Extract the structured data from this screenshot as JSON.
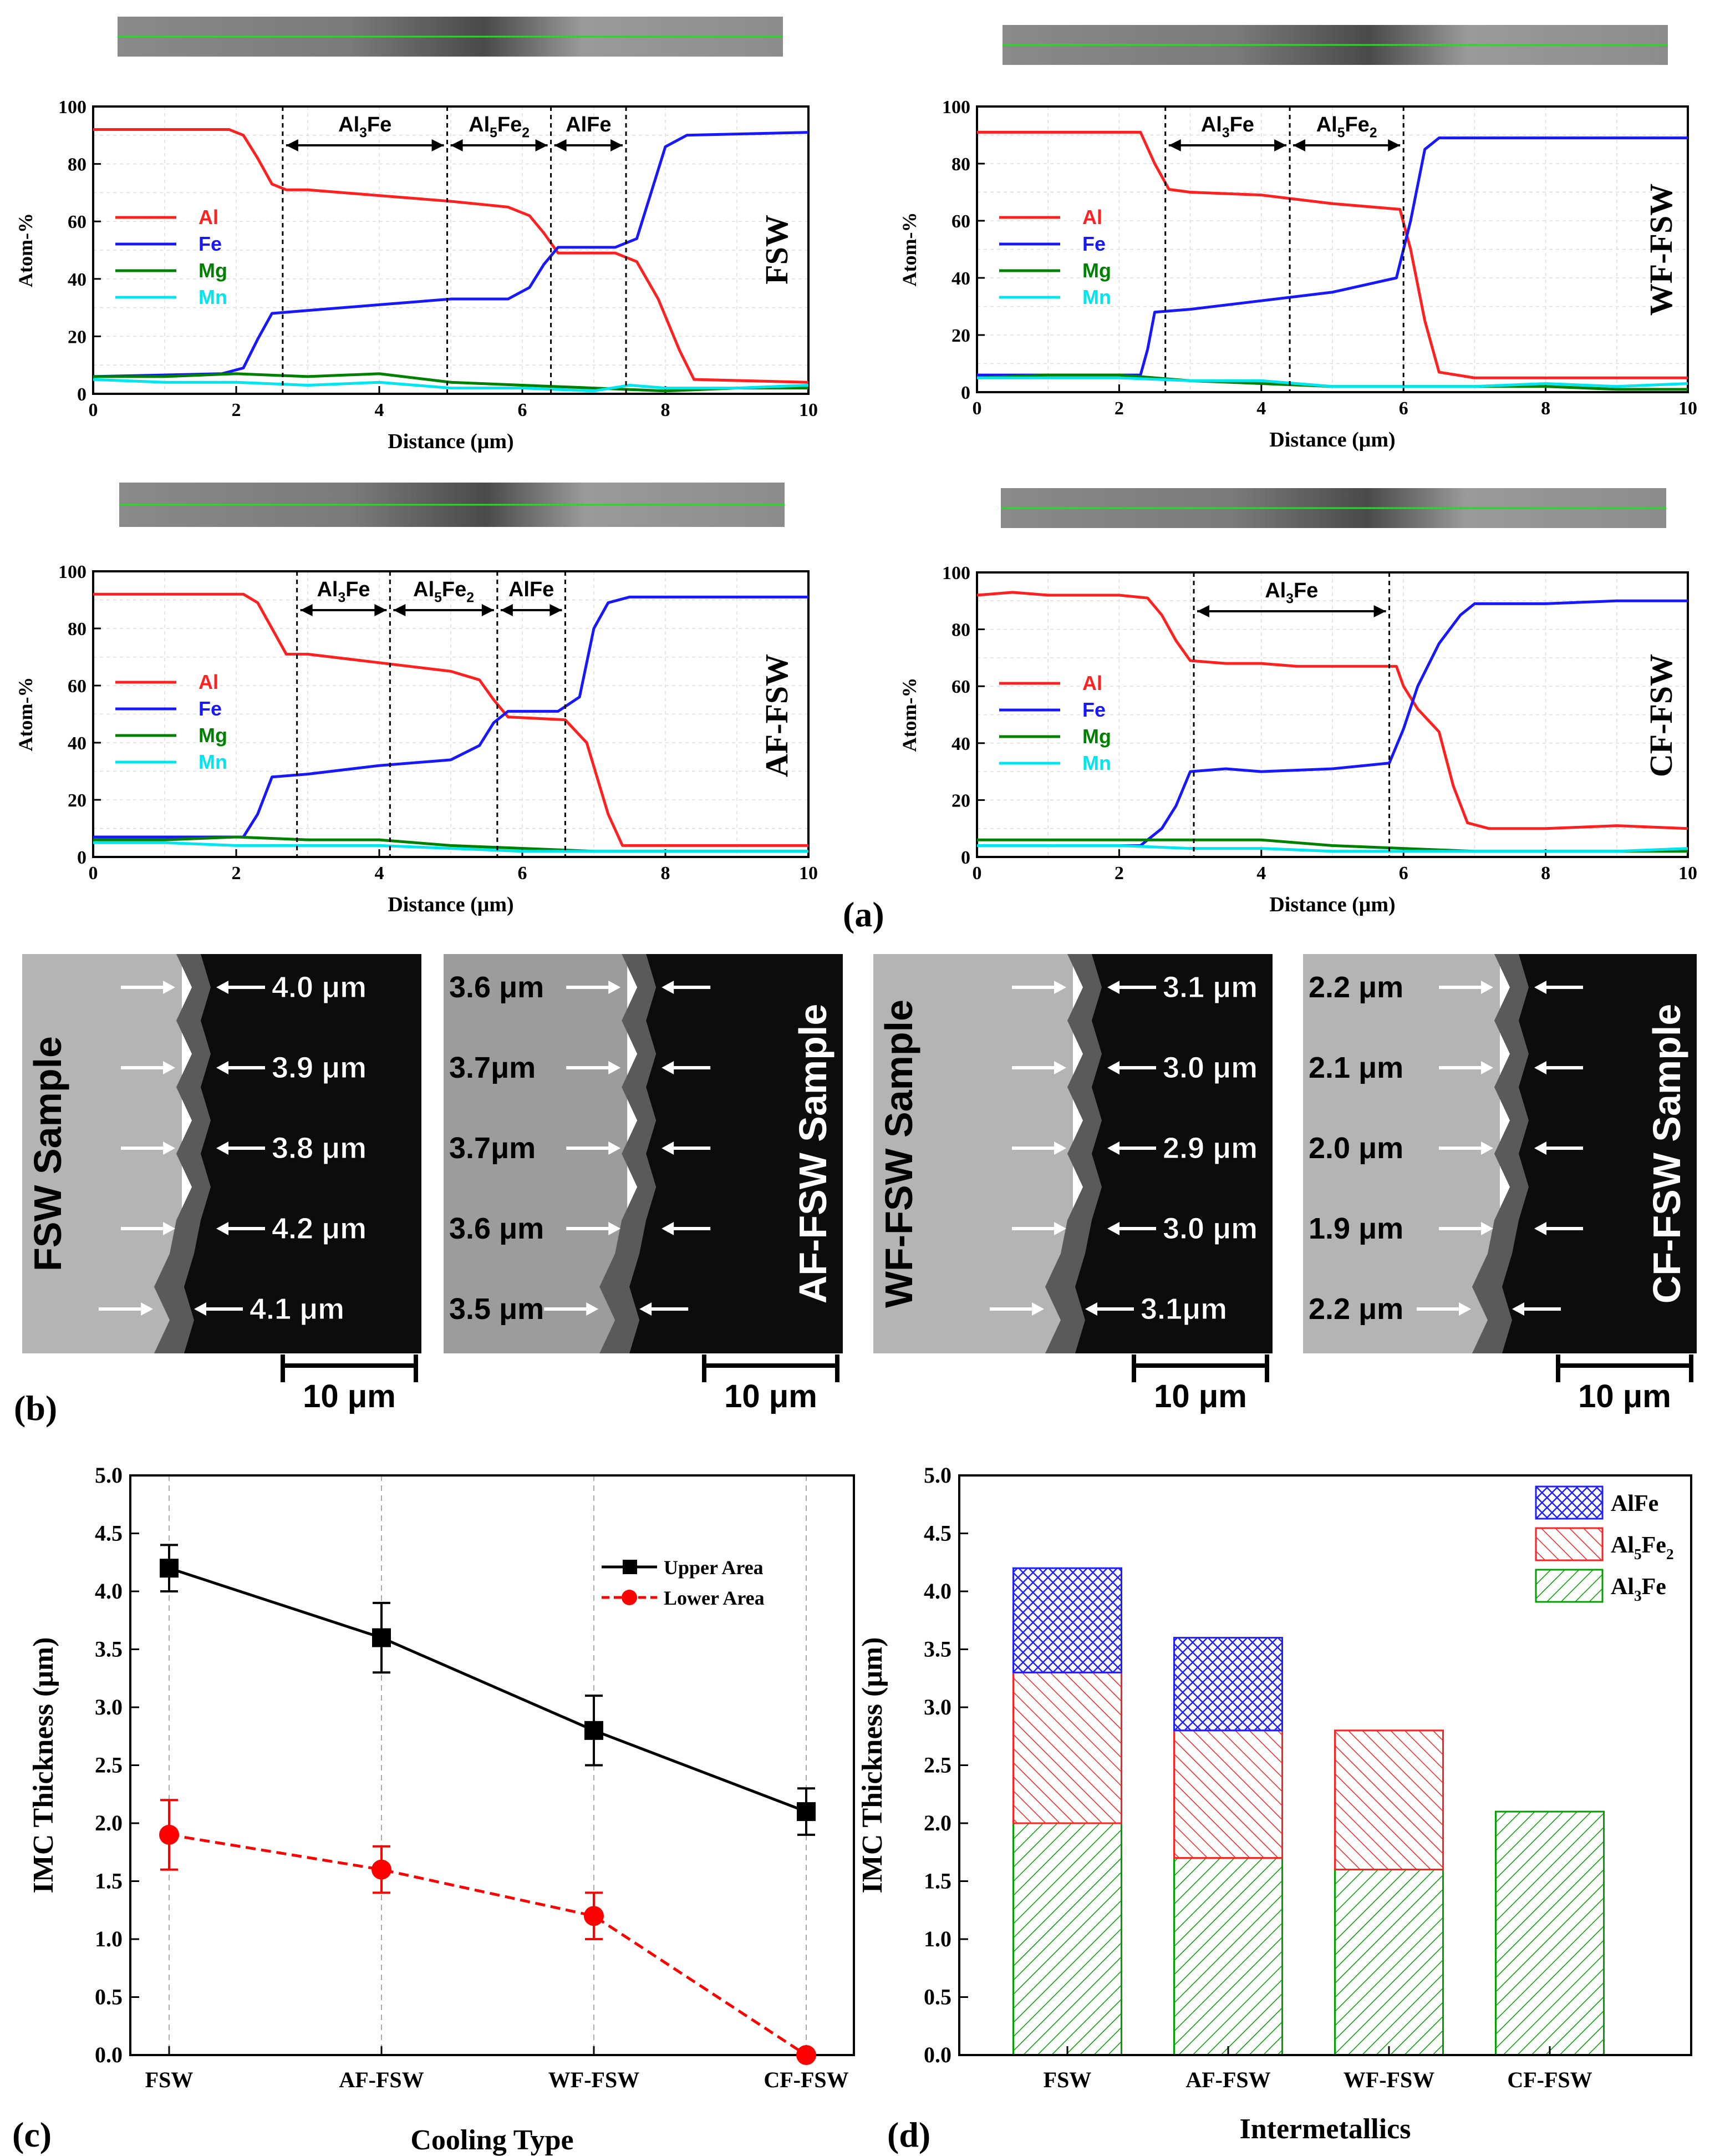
{
  "chart_data": [
    {
      "id": "a1",
      "type": "line",
      "panel_label": "FSW",
      "xlabel": "Distance (μm)",
      "ylabel": "Atom-%",
      "xlim": [
        0,
        10
      ],
      "ylim": [
        0,
        100
      ],
      "xticks": [
        "0",
        "2",
        "4",
        "6",
        "8",
        "10"
      ],
      "yticks": [
        "0",
        "20",
        "40",
        "60",
        "80",
        "100"
      ],
      "legend": [
        "Al",
        "Fe",
        "Mg",
        "Mn"
      ],
      "markers": [
        2.65,
        4.95,
        6.4,
        7.45
      ],
      "phases": [
        {
          "base": "Al",
          "s1": "3",
          "mid": "Fe",
          "s2": "",
          "from": 2.65,
          "to": 4.95
        },
        {
          "base": "Al",
          "s1": "5",
          "mid": "Fe",
          "s2": "2",
          "from": 4.95,
          "to": 6.4
        },
        {
          "base": "AlFe",
          "s1": "",
          "mid": "",
          "s2": "",
          "from": 6.4,
          "to": 7.45
        }
      ],
      "series": [
        {
          "name": "Al",
          "color": "#ff2020",
          "x": [
            0,
            1.9,
            2.1,
            2.3,
            2.5,
            2.7,
            3,
            4,
            5,
            5.8,
            6.1,
            6.3,
            6.5,
            7.3,
            7.6,
            7.9,
            8.2,
            8.4,
            10
          ],
          "y": [
            92,
            92,
            90,
            82,
            73,
            71,
            71,
            69,
            67,
            65,
            62,
            56,
            49,
            49,
            46,
            33,
            15,
            5,
            4
          ]
        },
        {
          "name": "Fe",
          "color": "#1818ff",
          "x": [
            0,
            1.8,
            2.1,
            2.3,
            2.5,
            3,
            4,
            5,
            5.8,
            6.1,
            6.3,
            6.5,
            7.3,
            7.6,
            7.8,
            8.0,
            8.3,
            10
          ],
          "y": [
            6,
            7,
            9,
            19,
            28,
            29,
            31,
            33,
            33,
            37,
            45,
            51,
            51,
            54,
            70,
            86,
            90,
            91
          ]
        },
        {
          "name": "Mg",
          "color": "#008000",
          "x": [
            0,
            1,
            2,
            3,
            4,
            5,
            6,
            7,
            8,
            9,
            10
          ],
          "y": [
            6,
            6,
            7,
            6,
            7,
            4,
            3,
            2,
            1,
            2,
            2
          ]
        },
        {
          "name": "Mn",
          "color": "#00e5ee",
          "x": [
            0,
            1,
            2,
            3,
            4,
            5,
            6,
            7,
            7.5,
            8,
            9,
            10
          ],
          "y": [
            5,
            4,
            4,
            3,
            4,
            2,
            2,
            1,
            3,
            2,
            2,
            3
          ]
        }
      ]
    },
    {
      "id": "a2",
      "type": "line",
      "panel_label": "WF-FSW",
      "xlabel": "Distance (μm)",
      "ylabel": "Atom-%",
      "xlim": [
        0,
        10
      ],
      "ylim": [
        0,
        100
      ],
      "xticks": [
        "0",
        "2",
        "4",
        "6",
        "8",
        "10"
      ],
      "yticks": [
        "0",
        "20",
        "40",
        "60",
        "80",
        "100"
      ],
      "legend": [
        "Al",
        "Fe",
        "Mg",
        "Mn"
      ],
      "markers": [
        2.65,
        4.4,
        6.0
      ],
      "phases": [
        {
          "base": "Al",
          "s1": "3",
          "mid": "Fe",
          "s2": "",
          "from": 2.65,
          "to": 4.4
        },
        {
          "base": "Al",
          "s1": "5",
          "mid": "Fe",
          "s2": "2",
          "from": 4.4,
          "to": 6.0
        }
      ],
      "series": [
        {
          "name": "Al",
          "color": "#ff2020",
          "x": [
            0,
            2.3,
            2.5,
            2.7,
            3,
            4,
            5,
            5.95,
            6.1,
            6.3,
            6.5,
            7,
            8,
            10
          ],
          "y": [
            91,
            91,
            80,
            71,
            70,
            69,
            66,
            64,
            50,
            25,
            7,
            5,
            5,
            5
          ]
        },
        {
          "name": "Fe",
          "color": "#1818ff",
          "x": [
            0,
            2.3,
            2.4,
            2.5,
            3,
            4,
            5,
            5.9,
            6.1,
            6.3,
            6.5,
            8,
            10
          ],
          "y": [
            6,
            6,
            15,
            28,
            29,
            32,
            35,
            40,
            60,
            85,
            89,
            89,
            89
          ]
        },
        {
          "name": "Mg",
          "color": "#008000",
          "x": [
            0,
            1,
            2,
            3,
            4,
            5,
            6,
            7,
            8,
            9,
            10
          ],
          "y": [
            5,
            6,
            6,
            4,
            3,
            2,
            2,
            2,
            2,
            1,
            1
          ]
        },
        {
          "name": "Mn",
          "color": "#00e5ee",
          "x": [
            0,
            1,
            2,
            3,
            4,
            5,
            6,
            7,
            8,
            9,
            10
          ],
          "y": [
            5,
            5,
            5,
            4,
            4,
            2,
            2,
            2,
            3,
            2,
            3
          ]
        }
      ]
    },
    {
      "id": "a3",
      "type": "line",
      "panel_label": "AF-FSW",
      "xlabel": "Distance (μm)",
      "ylabel": "Atom-%",
      "xlim": [
        0,
        10
      ],
      "ylim": [
        0,
        100
      ],
      "xticks": [
        "0",
        "2",
        "4",
        "6",
        "8",
        "10"
      ],
      "yticks": [
        "0",
        "20",
        "40",
        "60",
        "80",
        "100"
      ],
      "legend": [
        "Al",
        "Fe",
        "Mg",
        "Mn"
      ],
      "markers": [
        2.85,
        4.15,
        5.65,
        6.6
      ],
      "phases": [
        {
          "base": "Al",
          "s1": "3",
          "mid": "Fe",
          "s2": "",
          "from": 2.85,
          "to": 4.15
        },
        {
          "base": "Al",
          "s1": "5",
          "mid": "Fe",
          "s2": "2",
          "from": 4.15,
          "to": 5.65
        },
        {
          "base": "AlFe",
          "s1": "",
          "mid": "",
          "s2": "",
          "from": 5.65,
          "to": 6.6
        }
      ],
      "series": [
        {
          "name": "Al",
          "color": "#ff2020",
          "x": [
            0,
            2.1,
            2.3,
            2.5,
            2.7,
            3,
            4,
            5,
            5.4,
            5.6,
            5.8,
            6.6,
            6.9,
            7.2,
            7.4,
            10
          ],
          "y": [
            92,
            92,
            89,
            80,
            71,
            71,
            68,
            65,
            62,
            55,
            49,
            48,
            40,
            15,
            4,
            4
          ]
        },
        {
          "name": "Fe",
          "color": "#1818ff",
          "x": [
            0,
            2.1,
            2.3,
            2.5,
            3,
            4,
            5,
            5.4,
            5.6,
            5.8,
            6.5,
            6.8,
            7.0,
            7.2,
            7.5,
            10
          ],
          "y": [
            7,
            7,
            15,
            28,
            29,
            32,
            34,
            39,
            47,
            51,
            51,
            56,
            80,
            89,
            91,
            91
          ]
        },
        {
          "name": "Mg",
          "color": "#008000",
          "x": [
            0,
            1,
            2,
            3,
            4,
            5,
            6,
            7,
            8,
            9,
            10
          ],
          "y": [
            6,
            6,
            7,
            6,
            6,
            4,
            3,
            2,
            2,
            2,
            2
          ]
        },
        {
          "name": "Mn",
          "color": "#00e5ee",
          "x": [
            0,
            1,
            2,
            3,
            4,
            5,
            6,
            7,
            8,
            9,
            10
          ],
          "y": [
            5,
            5,
            4,
            4,
            4,
            3,
            2,
            2,
            2,
            2,
            2
          ]
        }
      ]
    },
    {
      "id": "a4",
      "type": "line",
      "panel_label": "CF-FSW",
      "xlabel": "Distance (μm)",
      "ylabel": "Atom-%",
      "xlim": [
        0,
        10
      ],
      "ylim": [
        0,
        100
      ],
      "xticks": [
        "0",
        "2",
        "4",
        "6",
        "8",
        "10"
      ],
      "yticks": [
        "0",
        "20",
        "40",
        "60",
        "80",
        "100"
      ],
      "legend": [
        "Al",
        "Fe",
        "Mg",
        "Mn"
      ],
      "markers": [
        3.05,
        5.8
      ],
      "phases": [
        {
          "base": "Al",
          "s1": "3",
          "mid": "Fe",
          "s2": "",
          "from": 3.05,
          "to": 5.8
        }
      ],
      "series": [
        {
          "name": "Al",
          "color": "#ff2020",
          "x": [
            0,
            0.5,
            1,
            1.5,
            2,
            2.4,
            2.6,
            2.8,
            3,
            3.5,
            4,
            4.5,
            5,
            5.5,
            5.9,
            6.0,
            6.2,
            6.5,
            6.7,
            6.9,
            7.2,
            8,
            9,
            10
          ],
          "y": [
            92,
            93,
            92,
            92,
            92,
            91,
            85,
            76,
            69,
            68,
            68,
            67,
            67,
            67,
            67,
            60,
            52,
            44,
            25,
            12,
            10,
            10,
            11,
            10
          ]
        },
        {
          "name": "Fe",
          "color": "#1818ff",
          "x": [
            0,
            2.3,
            2.6,
            2.8,
            3,
            3.5,
            4,
            5,
            5.8,
            6.0,
            6.2,
            6.5,
            6.8,
            7,
            8,
            9,
            10
          ],
          "y": [
            4,
            4,
            10,
            18,
            30,
            31,
            30,
            31,
            33,
            45,
            60,
            75,
            85,
            89,
            89,
            90,
            90
          ]
        },
        {
          "name": "Mg",
          "color": "#008000",
          "x": [
            0,
            1,
            2,
            3,
            4,
            5,
            6,
            7,
            8,
            9,
            10
          ],
          "y": [
            6,
            6,
            6,
            6,
            6,
            4,
            3,
            2,
            2,
            2,
            2
          ]
        },
        {
          "name": "Mn",
          "color": "#00e5ee",
          "x": [
            0,
            1,
            2,
            3,
            4,
            5,
            6,
            7,
            8,
            9,
            10
          ],
          "y": [
            4,
            4,
            4,
            3,
            3,
            2,
            2,
            2,
            2,
            2,
            3
          ]
        }
      ]
    },
    {
      "id": "c",
      "type": "line",
      "panel_letter": "(c)",
      "xlabel": "Cooling Type",
      "ylabel": "IMC Thickness (μm)",
      "categories": [
        "FSW",
        "AF-FSW",
        "WF-FSW",
        "CF-FSW"
      ],
      "ylim": [
        0,
        5
      ],
      "yticks": [
        "0.0",
        "0.5",
        "1.0",
        "1.5",
        "2.0",
        "2.5",
        "3.0",
        "3.5",
        "4.0",
        "4.5",
        "5.0"
      ],
      "series": [
        {
          "name": "Upper Area",
          "color": "#000000",
          "values": [
            4.2,
            3.6,
            2.8,
            2.1
          ],
          "errors": [
            0.2,
            0.3,
            0.3,
            0.2
          ]
        },
        {
          "name": "Lower Area",
          "color": "#ff0000",
          "values": [
            1.9,
            1.6,
            1.2,
            0.0
          ],
          "errors": [
            0.3,
            0.2,
            0.2,
            0.0
          ]
        }
      ]
    },
    {
      "id": "d",
      "type": "bar",
      "stacked": true,
      "panel_letter": "(d)",
      "xlabel": "Intermetallics",
      "ylabel": "IMC Thickness (μm)",
      "categories": [
        "FSW",
        "AF-FSW",
        "WF-FSW",
        "CF-FSW"
      ],
      "ylim": [
        0,
        5
      ],
      "yticks": [
        "0.0",
        "0.5",
        "1.0",
        "1.5",
        "2.0",
        "2.5",
        "3.0",
        "3.5",
        "4.0",
        "4.5",
        "5.0"
      ],
      "legend": [
        {
          "base": "AlFe",
          "s1": "",
          "mid": "",
          "s2": ""
        },
        {
          "base": "Al",
          "s1": "5",
          "mid": "Fe",
          "s2": "2"
        },
        {
          "base": "Al",
          "s1": "3",
          "mid": "Fe",
          "s2": ""
        }
      ],
      "series": [
        {
          "name": "Al3Fe",
          "color": "#00a000",
          "values": [
            2.0,
            1.7,
            1.6,
            2.1
          ]
        },
        {
          "name": "Al5Fe2",
          "color": "#ff2020",
          "values": [
            1.3,
            1.1,
            1.2,
            0
          ]
        },
        {
          "name": "AlFe",
          "color": "#2020ff",
          "values": [
            0.9,
            0.8,
            0,
            0
          ]
        }
      ]
    }
  ],
  "figure_b": {
    "panel_letter": "(b)",
    "panels": [
      {
        "label": "FSW Sample",
        "label_side": "left",
        "measurements": [
          "4.0 μm",
          "3.9 μm",
          "3.8 μm",
          "4.2 μm",
          "4.1 μm"
        ],
        "scale": "10 μm"
      },
      {
        "label": "AF-FSW Sample",
        "label_side": "right",
        "measurements": [
          "3.6 μm",
          "3.7μm",
          "3.7μm",
          "3.6 μm",
          "3.5 μm"
        ],
        "scale": "10 μm"
      },
      {
        "label": "WF-FSW Sample",
        "label_side": "left",
        "measurements": [
          "3.1 μm",
          "3.0 μm",
          "2.9 μm",
          "3.0 μm",
          "3.1μm"
        ],
        "scale": "10 μm"
      },
      {
        "label": "CF-FSW Sample",
        "label_side": "right",
        "measurements": [
          "2.2 μm",
          "2.1 μm",
          "2.0 μm",
          "1.9 μm",
          "2.2 μm"
        ],
        "scale": "10 μm"
      }
    ]
  },
  "figure_a": {
    "panel_letter": "(a)"
  }
}
